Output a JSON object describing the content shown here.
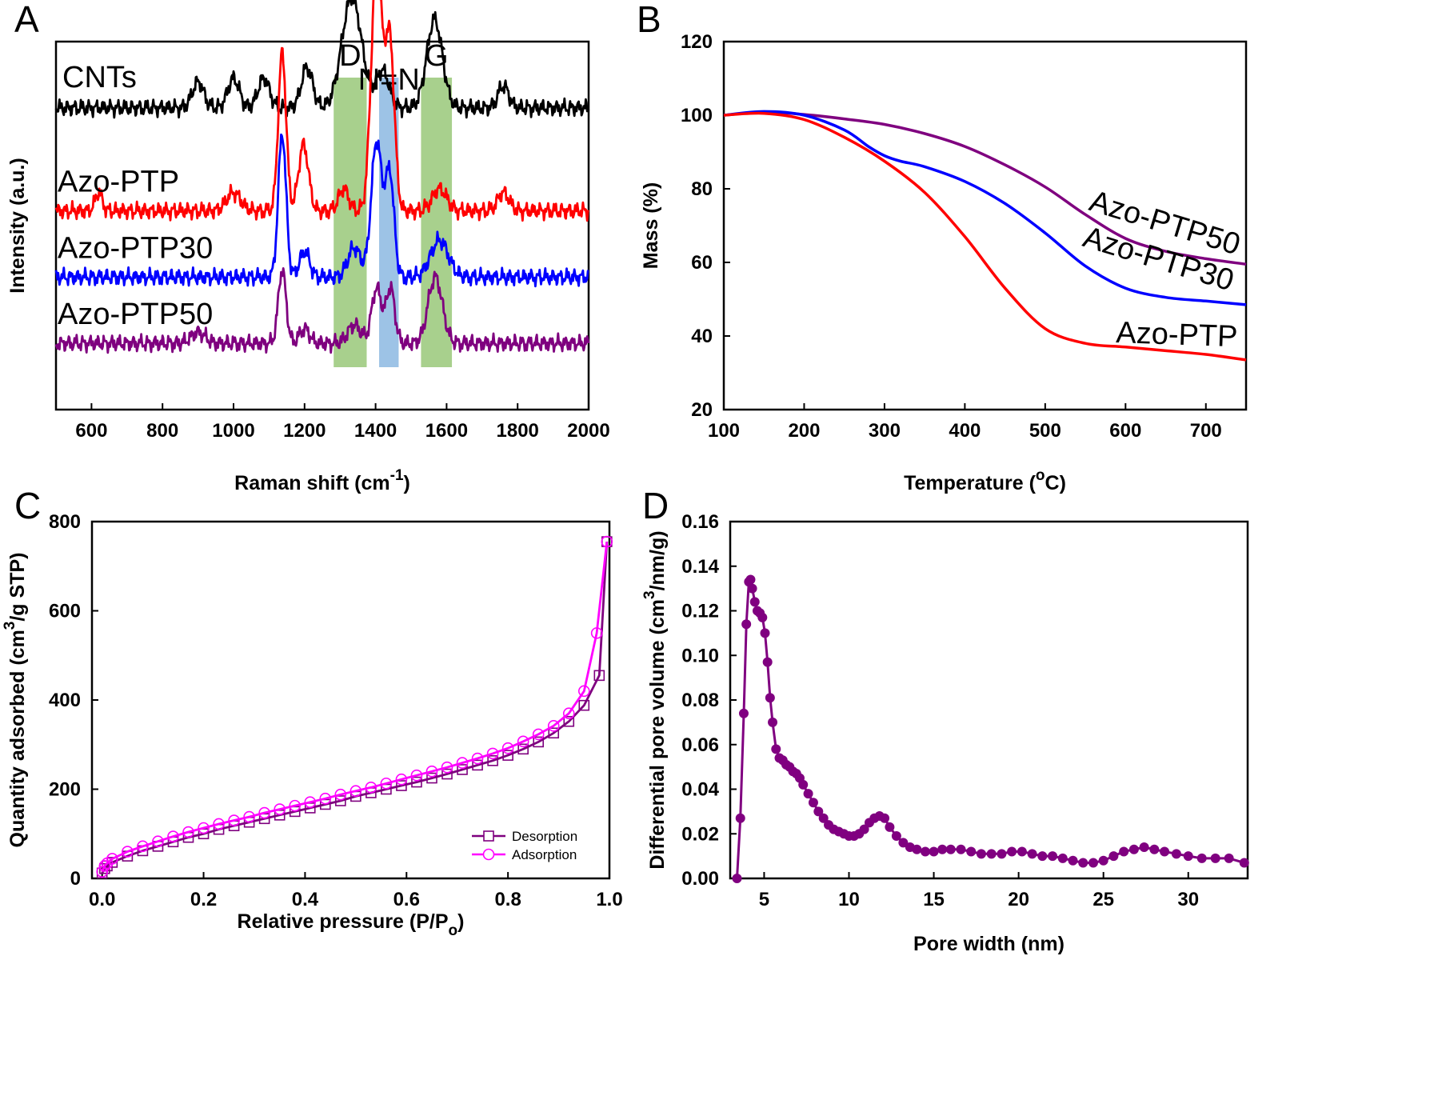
{
  "chart_data": [
    {
      "panel_letter": "A",
      "type": "line",
      "xlabel": "Raman shift (cm",
      "xlabel_sup": "-1",
      "xlabel_end": ")",
      "ylabel": "Intensity (a.u.)",
      "xlim": [
        500,
        2000
      ],
      "xticks": [
        600,
        800,
        1000,
        1200,
        1400,
        1600,
        1800,
        2000
      ],
      "yticks": [],
      "bands": [
        {
          "label": "D",
          "x": [
            1282,
            1375
          ],
          "color": "#a8d08d"
        },
        {
          "label": "N=N",
          "x": [
            1410,
            1465
          ],
          "color": "#9dc3e6"
        },
        {
          "label": "G",
          "x": [
            1528,
            1615
          ],
          "color": "#a8d08d"
        }
      ],
      "series": [
        {
          "name": "CNTs",
          "color": "#000000",
          "baseline": 0.82,
          "peaks": [
            [
              1333,
              0.3,
              28
            ],
            [
              1207,
              0.11,
              16
            ],
            [
              1566,
              0.24,
              22
            ],
            [
              1420,
              0.1,
              18
            ],
            [
              900,
              0.07,
              16
            ],
            [
              1000,
              0.08,
              16
            ],
            [
              1085,
              0.08,
              16
            ],
            [
              1760,
              0.06,
              15
            ]
          ]
        },
        {
          "name": "Azo-PTP",
          "color": "#ff0000",
          "baseline": 0.54,
          "peaks": [
            [
              1137,
              0.43,
              11
            ],
            [
              1403,
              0.68,
              15
            ],
            [
              1440,
              0.46,
              13
            ],
            [
              1197,
              0.18,
              14
            ],
            [
              1310,
              0.06,
              14
            ],
            [
              1580,
              0.06,
              20
            ],
            [
              1000,
              0.05,
              20
            ],
            [
              1760,
              0.05,
              16
            ],
            [
              620,
              0.05,
              10
            ]
          ]
        },
        {
          "name": "Azo-PTP30",
          "color": "#0000ff",
          "baseline": 0.36,
          "peaks": [
            [
              1137,
              0.39,
              11
            ],
            [
              1403,
              0.37,
              15
            ],
            [
              1440,
              0.28,
              12
            ],
            [
              1200,
              0.07,
              14
            ],
            [
              1340,
              0.08,
              18
            ],
            [
              1580,
              0.1,
              25
            ]
          ]
        },
        {
          "name": "Azo-PTP50",
          "color": "#7f007f",
          "baseline": 0.18,
          "peaks": [
            [
              1137,
              0.2,
              11
            ],
            [
              1403,
              0.15,
              14
            ],
            [
              1442,
              0.15,
              12
            ],
            [
              1568,
              0.18,
              20
            ],
            [
              1340,
              0.05,
              18
            ],
            [
              900,
              0.03,
              20
            ],
            [
              1200,
              0.04,
              14
            ]
          ]
        }
      ]
    },
    {
      "panel_letter": "B",
      "type": "line",
      "xlabel": "Temperature (",
      "xlabel_sup": "o",
      "xlabel_end": "C)",
      "ylabel": "Mass (%)",
      "xlim": [
        100,
        750
      ],
      "ylim": [
        20,
        120
      ],
      "xticks": [
        100,
        200,
        300,
        400,
        500,
        600,
        700
      ],
      "yticks": [
        20,
        40,
        60,
        80,
        100,
        120
      ],
      "series": [
        {
          "name": "Azo-PTP50",
          "color": "#7f007f",
          "x": [
            100,
            150,
            200,
            250,
            300,
            350,
            400,
            450,
            500,
            550,
            600,
            650,
            700,
            750
          ],
          "y": [
            100,
            100.8,
            100.2,
            99,
            97.5,
            95,
            91.5,
            86.5,
            80.5,
            73,
            66.5,
            63,
            61,
            59.5
          ]
        },
        {
          "name": "Azo-PTP30",
          "color": "#0000ff",
          "x": [
            100,
            150,
            200,
            250,
            280,
            300,
            320,
            350,
            400,
            450,
            500,
            550,
            600,
            650,
            700,
            750
          ],
          "y": [
            100,
            101,
            100,
            96,
            91.5,
            89,
            87.5,
            86,
            82,
            76,
            68,
            59,
            53,
            50.5,
            49.5,
            48.5
          ]
        },
        {
          "name": "Azo-PTP",
          "color": "#ff0000",
          "x": [
            100,
            150,
            200,
            250,
            300,
            350,
            400,
            450,
            500,
            550,
            600,
            650,
            700,
            750
          ],
          "y": [
            100,
            100.5,
            98.8,
            94,
            87.5,
            79,
            67,
            53,
            42,
            38,
            37,
            36,
            35,
            33.5
          ]
        }
      ]
    },
    {
      "panel_letter": "C",
      "type": "line",
      "xlabel": "Relative pressure (P/P",
      "xlabel_sub": "o",
      "xlabel_end": ")",
      "ylabel": "Quantity adsorbed (cm",
      "ylabel_sup": "3",
      "ylabel_end": "/g STP)",
      "xlim": [
        -0.02,
        1.0
      ],
      "ylim": [
        0,
        800
      ],
      "xticks": [
        0.0,
        0.2,
        0.4,
        0.6,
        0.8,
        1.0
      ],
      "xtick_labels": [
        "0.0",
        "0.2",
        "0.4",
        "0.6",
        "0.8",
        "1.0"
      ],
      "yticks": [
        0,
        200,
        400,
        600,
        800
      ],
      "legend": "bottom-right",
      "series": [
        {
          "name": "Desorption",
          "color": "#7f007f",
          "marker": "square",
          "x": [
            0.0,
            0.005,
            0.01,
            0.02,
            0.05,
            0.08,
            0.11,
            0.14,
            0.17,
            0.2,
            0.23,
            0.26,
            0.29,
            0.32,
            0.35,
            0.38,
            0.41,
            0.44,
            0.47,
            0.5,
            0.53,
            0.56,
            0.59,
            0.62,
            0.65,
            0.68,
            0.71,
            0.74,
            0.77,
            0.8,
            0.83,
            0.86,
            0.89,
            0.92,
            0.95,
            0.98,
            0.995
          ],
          "y": [
            12,
            22,
            28,
            36,
            50,
            62,
            72,
            82,
            92,
            100,
            110,
            118,
            126,
            134,
            142,
            150,
            158,
            166,
            174,
            184,
            192,
            200,
            208,
            216,
            225,
            234,
            244,
            254,
            264,
            276,
            290,
            306,
            326,
            352,
            388,
            455,
            755
          ]
        },
        {
          "name": "Adsorption",
          "color": "#ff00ff",
          "marker": "circle",
          "x": [
            0.0,
            0.005,
            0.01,
            0.02,
            0.05,
            0.08,
            0.11,
            0.14,
            0.17,
            0.2,
            0.23,
            0.26,
            0.29,
            0.32,
            0.35,
            0.38,
            0.41,
            0.44,
            0.47,
            0.5,
            0.53,
            0.56,
            0.59,
            0.62,
            0.65,
            0.68,
            0.71,
            0.74,
            0.77,
            0.8,
            0.83,
            0.86,
            0.89,
            0.92,
            0.95,
            0.975,
            0.995
          ],
          "y": [
            15,
            28,
            34,
            44,
            60,
            72,
            83,
            94,
            104,
            113,
            122,
            130,
            138,
            147,
            155,
            163,
            171,
            179,
            188,
            196,
            204,
            213,
            222,
            231,
            240,
            249,
            259,
            269,
            280,
            292,
            307,
            323,
            342,
            370,
            420,
            550,
            755
          ]
        }
      ]
    },
    {
      "panel_letter": "D",
      "type": "line",
      "xlabel": "Pore width (nm)",
      "ylabel": "Differential pore volume (cm",
      "ylabel_sup": "3",
      "ylabel_end": "/nm/g)",
      "xlim": [
        3,
        33.5
      ],
      "ylim": [
        0,
        0.16
      ],
      "xticks": [
        5,
        10,
        15,
        20,
        25,
        30
      ],
      "yticks": [
        0.0,
        0.02,
        0.04,
        0.06,
        0.08,
        0.1,
        0.12,
        0.14,
        0.16
      ],
      "ytick_labels": [
        "0.00",
        "0.02",
        "0.04",
        "0.06",
        "0.08",
        "0.10",
        "0.12",
        "0.14",
        "0.16"
      ],
      "series": [
        {
          "name": "",
          "color": "#800080",
          "marker": "circle",
          "x": [
            3.4,
            3.6,
            3.8,
            3.95,
            4.1,
            4.2,
            4.3,
            4.45,
            4.6,
            4.75,
            4.9,
            5.05,
            5.2,
            5.35,
            5.5,
            5.7,
            5.9,
            6.1,
            6.3,
            6.5,
            6.7,
            6.9,
            7.1,
            7.3,
            7.6,
            7.9,
            8.2,
            8.5,
            8.8,
            9.1,
            9.4,
            9.7,
            10.0,
            10.3,
            10.6,
            10.9,
            11.2,
            11.5,
            11.8,
            12.1,
            12.4,
            12.8,
            13.2,
            13.6,
            14.0,
            14.5,
            15.0,
            15.5,
            16.0,
            16.6,
            17.2,
            17.8,
            18.4,
            19.0,
            19.6,
            20.2,
            20.8,
            21.4,
            22.0,
            22.6,
            23.2,
            23.8,
            24.4,
            25.0,
            25.6,
            26.2,
            26.8,
            27.4,
            28.0,
            28.6,
            29.3,
            30.0,
            30.8,
            31.6,
            32.4,
            33.3
          ],
          "y": [
            0.0,
            0.027,
            0.074,
            0.114,
            0.133,
            0.134,
            0.13,
            0.124,
            0.12,
            0.119,
            0.117,
            0.11,
            0.097,
            0.081,
            0.07,
            0.058,
            0.054,
            0.053,
            0.051,
            0.05,
            0.048,
            0.047,
            0.045,
            0.042,
            0.038,
            0.034,
            0.03,
            0.027,
            0.024,
            0.022,
            0.021,
            0.02,
            0.019,
            0.019,
            0.02,
            0.022,
            0.025,
            0.027,
            0.028,
            0.027,
            0.023,
            0.019,
            0.016,
            0.014,
            0.013,
            0.012,
            0.012,
            0.013,
            0.013,
            0.013,
            0.012,
            0.011,
            0.011,
            0.011,
            0.012,
            0.012,
            0.011,
            0.01,
            0.01,
            0.009,
            0.008,
            0.007,
            0.007,
            0.008,
            0.01,
            0.012,
            0.013,
            0.014,
            0.013,
            0.012,
            0.011,
            0.01,
            0.009,
            0.009,
            0.009,
            0.007
          ]
        }
      ]
    }
  ]
}
